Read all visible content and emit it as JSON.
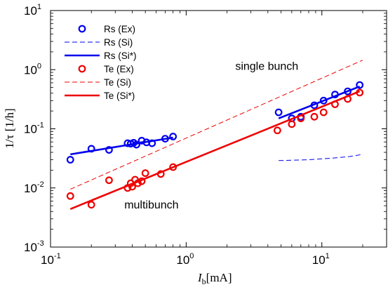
{
  "chart_data": {
    "type": "scatter",
    "xscale": "log",
    "yscale": "log",
    "xlim": [
      0.1,
      30
    ],
    "ylim": [
      0.001,
      10
    ],
    "xticks": [
      {
        "base": "10",
        "exp": "-1",
        "value": 0.1
      },
      {
        "base": "10",
        "exp": "0",
        "value": 1
      },
      {
        "base": "10",
        "exp": "1",
        "value": 10
      }
    ],
    "yticks": [
      {
        "base": "10",
        "exp": "-3",
        "value": 0.001
      },
      {
        "base": "10",
        "exp": "-2",
        "value": 0.01
      },
      {
        "base": "10",
        "exp": "-1",
        "value": 0.1
      },
      {
        "base": "10",
        "exp": "0",
        "value": 1
      },
      {
        "base": "10",
        "exp": "1",
        "value": 10
      }
    ],
    "xlabel": {
      "main": "I",
      "sub": "b",
      "unit": "[mA]"
    },
    "ylabel": "1/τ  [1/h]",
    "grid": false,
    "legend_position": "top-left",
    "annotations": [
      {
        "text": "single bunch",
        "x": 2.3,
        "y": 1.0
      },
      {
        "text": "multibunch",
        "x": 0.35,
        "y": 0.0045
      }
    ],
    "series": [
      {
        "name": "Rs (Ex)",
        "kind": "markers",
        "color": "#0000ee",
        "points": [
          [
            0.14,
            0.03
          ],
          [
            0.2,
            0.046
          ],
          [
            0.27,
            0.044
          ],
          [
            0.37,
            0.057
          ],
          [
            0.39,
            0.056
          ],
          [
            0.41,
            0.058
          ],
          [
            0.43,
            0.054
          ],
          [
            0.47,
            0.063
          ],
          [
            0.51,
            0.059
          ],
          [
            0.56,
            0.057
          ],
          [
            0.7,
            0.068
          ],
          [
            0.8,
            0.074
          ],
          [
            4.8,
            0.19
          ],
          [
            6.0,
            0.15
          ],
          [
            7.0,
            0.16
          ],
          [
            8.8,
            0.25
          ],
          [
            10.3,
            0.3
          ],
          [
            12.5,
            0.38
          ],
          [
            15.5,
            0.43
          ],
          [
            19.0,
            0.55
          ]
        ]
      },
      {
        "name": "Rs (Si)",
        "kind": "dashed",
        "color": "#0000ee",
        "segments": [
          [
            [
              0.4,
              0.058
            ],
            [
              0.75,
              0.068
            ]
          ],
          [
            [
              4.8,
              0.029
            ],
            [
              8.0,
              0.03
            ],
            [
              12.0,
              0.032
            ],
            [
              16.0,
              0.034
            ],
            [
              20.0,
              0.037
            ]
          ]
        ]
      },
      {
        "name": "Rs (Si*)",
        "kind": "solid",
        "color": "#0000ee",
        "segments": [
          [
            [
              0.14,
              0.037
            ],
            [
              0.8,
              0.071
            ]
          ],
          [
            [
              4.8,
              0.15
            ],
            [
              19.0,
              0.52
            ]
          ]
        ]
      },
      {
        "name": "Te (Ex)",
        "kind": "markers",
        "color": "#ee0000",
        "points": [
          [
            0.14,
            0.0073
          ],
          [
            0.2,
            0.0052
          ],
          [
            0.27,
            0.0135
          ],
          [
            0.37,
            0.01
          ],
          [
            0.39,
            0.012
          ],
          [
            0.4,
            0.0105
          ],
          [
            0.42,
            0.0138
          ],
          [
            0.44,
            0.012
          ],
          [
            0.47,
            0.013
          ],
          [
            0.5,
            0.0178
          ],
          [
            0.65,
            0.0172
          ],
          [
            0.8,
            0.0225
          ],
          [
            4.7,
            0.094
          ],
          [
            6.0,
            0.12
          ],
          [
            7.0,
            0.15
          ],
          [
            8.8,
            0.16
          ],
          [
            10.3,
            0.19
          ],
          [
            12.5,
            0.26
          ],
          [
            15.5,
            0.32
          ],
          [
            19.0,
            0.41
          ]
        ]
      },
      {
        "name": "Te (Si)",
        "kind": "dashed",
        "color": "#ee0000",
        "segments": [
          [
            [
              0.14,
              0.0095
            ],
            [
              20.0,
              1.45
            ]
          ]
        ]
      },
      {
        "name": "Te (Si*)",
        "kind": "solid",
        "color": "#ee0000",
        "segments": [
          [
            [
              0.14,
              0.0044
            ],
            [
              19.0,
              0.43
            ]
          ]
        ]
      }
    ]
  }
}
